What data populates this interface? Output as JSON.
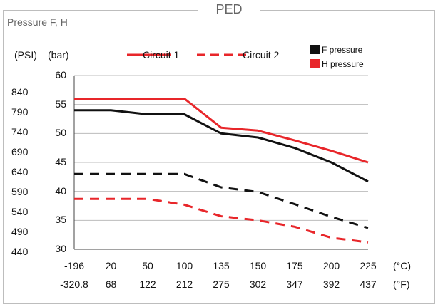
{
  "chart_data": {
    "type": "line",
    "title": "PED",
    "subtitle": "Pressure F, H",
    "y_psi_label": "(PSI)",
    "y_bar_label": "(bar)",
    "x_c_unit": "(°C)",
    "x_f_unit": "(°F)",
    "categories_c": [
      "-196",
      "20",
      "50",
      "100",
      "135",
      "150",
      "175",
      "200",
      "225"
    ],
    "categories_f": [
      "-320.8",
      "68",
      "122",
      "212",
      "275",
      "302",
      "347",
      "392",
      "437"
    ],
    "y_bar_ticks": [
      "30",
      "35",
      "40",
      "45",
      "50",
      "55",
      "60"
    ],
    "y_psi_ticks": [
      "440",
      "490",
      "540",
      "590",
      "640",
      "690",
      "740",
      "790",
      "840"
    ],
    "ylim": [
      30,
      60
    ],
    "grid": true,
    "legend": {
      "circuit1": "Circuit 1",
      "circuit2": "Circuit 2",
      "f_pressure": "F pressure",
      "h_pressure": "H pressure"
    },
    "series": [
      {
        "name": "Circuit 1 H pressure",
        "circuit": 1,
        "color": "#e8262a",
        "dashed": false,
        "values": [
          56,
          56,
          56,
          56,
          51,
          50.5,
          48.8,
          47,
          45
        ]
      },
      {
        "name": "Circuit 1 F pressure",
        "circuit": 1,
        "color": "#111111",
        "dashed": false,
        "values": [
          54,
          54,
          53.3,
          53.3,
          50,
          49.3,
          47.5,
          45,
          41.7
        ]
      },
      {
        "name": "Circuit 2 F pressure",
        "circuit": 2,
        "color": "#111111",
        "dashed": true,
        "values": [
          43,
          43,
          43,
          43,
          40.7,
          39.9,
          37.8,
          35.6,
          33.7
        ]
      },
      {
        "name": "Circuit 2 H pressure",
        "circuit": 2,
        "color": "#e8262a",
        "dashed": true,
        "values": [
          38.7,
          38.7,
          38.7,
          37.7,
          35.7,
          35,
          33.9,
          32,
          31.2
        ]
      }
    ]
  }
}
